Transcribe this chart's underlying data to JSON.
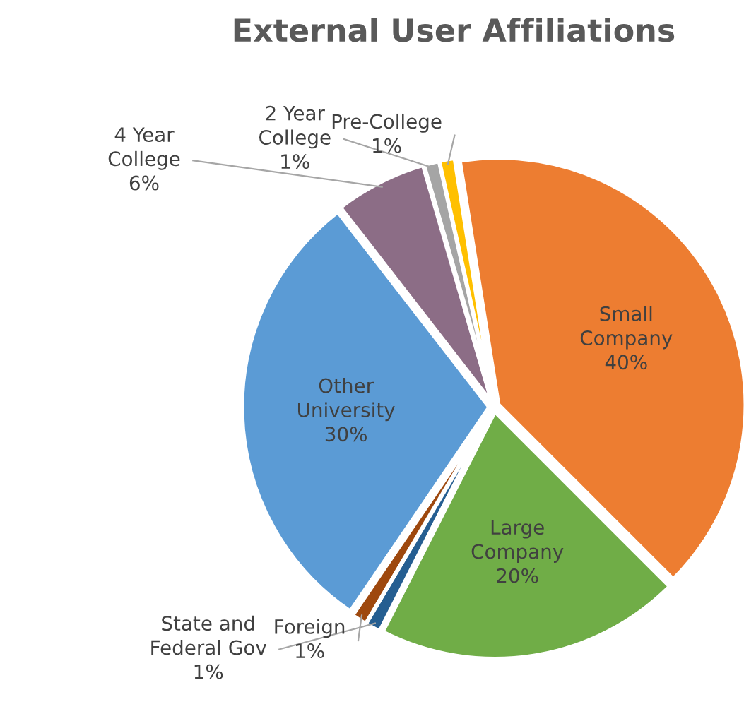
{
  "chart_data": {
    "type": "pie",
    "title": "External User Affiliations",
    "categories": [
      "Small Company",
      "Large Company",
      "State and Federal Gov",
      "Foreign",
      "Other University",
      "4 Year College",
      "2 Year College",
      "Pre-College"
    ],
    "values": [
      40,
      20,
      1,
      1,
      30,
      6,
      1,
      1
    ],
    "colors": [
      "#ed7d31",
      "#70ad47",
      "#255e91",
      "#9e480e",
      "#5b9bd5",
      "#8c6d86",
      "#a5a5a5",
      "#ffc000"
    ],
    "value_labels": [
      "40%",
      "20%",
      "1%",
      "1%",
      "30%",
      "6%",
      "1%",
      "1%"
    ],
    "legend": false
  }
}
